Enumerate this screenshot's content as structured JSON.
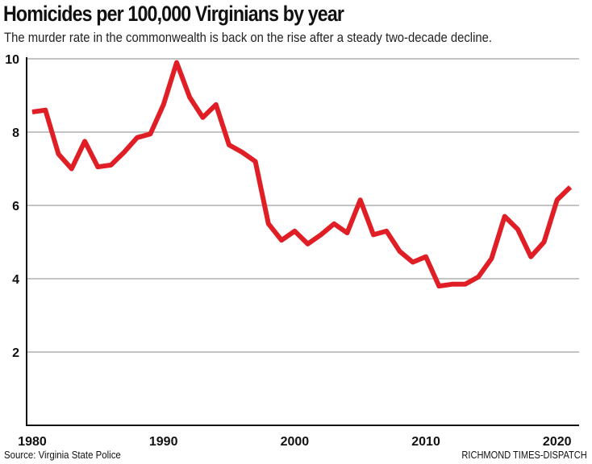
{
  "chart_data": {
    "type": "line",
    "title": "Homicides per 100,000 Virginians by year",
    "subtitle": "The murder rate in the commonwealth is back on the rise after a steady two-decade decline.",
    "xlabel": "",
    "ylabel": "",
    "xlim": [
      1980,
      2021
    ],
    "ylim": [
      0,
      10
    ],
    "x_ticks": [
      1980,
      1990,
      2000,
      2010,
      2020
    ],
    "y_ticks": [
      2,
      4,
      6,
      8,
      10
    ],
    "grid": "horizontal",
    "line_color": "#e01e25",
    "x": [
      1980,
      1981,
      1982,
      1983,
      1984,
      1985,
      1986,
      1987,
      1988,
      1989,
      1990,
      1991,
      1992,
      1993,
      1994,
      1995,
      1996,
      1997,
      1998,
      1999,
      2000,
      2001,
      2002,
      2003,
      2004,
      2005,
      2006,
      2007,
      2008,
      2009,
      2010,
      2011,
      2012,
      2013,
      2014,
      2015,
      2016,
      2017,
      2018,
      2019,
      2020,
      2021
    ],
    "values": [
      8.55,
      8.6,
      7.4,
      7.0,
      7.75,
      7.05,
      7.1,
      7.45,
      7.85,
      7.95,
      8.75,
      9.9,
      8.95,
      8.4,
      8.75,
      7.65,
      7.45,
      7.2,
      5.5,
      5.05,
      5.3,
      4.95,
      5.2,
      5.5,
      5.25,
      6.15,
      5.2,
      5.3,
      4.75,
      4.45,
      4.6,
      3.8,
      3.85,
      3.85,
      4.05,
      4.55,
      5.7,
      5.35,
      4.6,
      5.0,
      6.15,
      6.5
    ]
  },
  "source": "Source: Virginia State Police",
  "credit": "RICHMOND TIMES-DISPATCH"
}
